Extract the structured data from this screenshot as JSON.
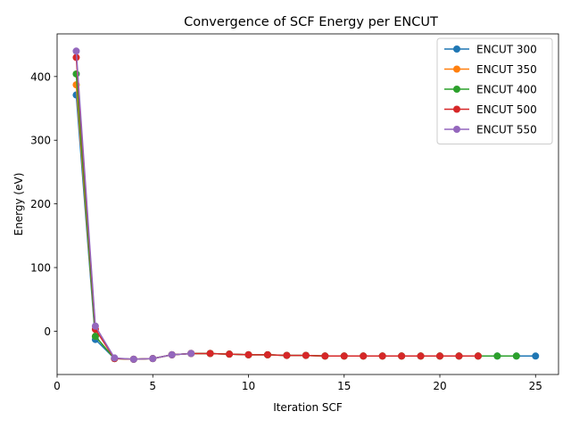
{
  "chart_data": {
    "type": "line",
    "title": "Convergence of SCF Energy per ENCUT",
    "xlabel": "Iteration SCF",
    "ylabel": "Energy (eV)",
    "xlim": [
      0,
      26.2
    ],
    "ylim": [
      -68,
      467
    ],
    "xticks": [
      0,
      5,
      10,
      15,
      20,
      25
    ],
    "yticks": [
      0,
      100,
      200,
      300,
      400
    ],
    "grid": false,
    "legend_position": "top-right",
    "series": [
      {
        "name": "ENCUT 300",
        "color": "#1f77b4",
        "x": [
          1,
          2,
          3,
          4,
          5,
          6,
          7,
          8,
          9,
          10,
          11,
          12,
          13,
          14,
          15,
          16,
          17,
          18,
          19,
          20,
          21,
          22,
          23,
          24,
          25
        ],
        "y": [
          371,
          -13,
          -43,
          -44,
          -43,
          -37,
          -35,
          -35,
          -36,
          -37,
          -37,
          -38,
          -38,
          -39,
          -39,
          -39,
          -39,
          -39,
          -39,
          -39,
          -39,
          -39,
          -39,
          -39,
          -39
        ]
      },
      {
        "name": "ENCUT 350",
        "color": "#ff7f0e",
        "x": [
          1,
          2,
          3,
          4,
          5,
          6,
          7,
          8,
          9,
          10,
          11,
          12,
          13,
          14,
          15,
          16,
          17,
          18,
          19,
          20,
          21,
          22
        ],
        "y": [
          387,
          -8,
          -43,
          -44,
          -43,
          -37,
          -35,
          -35,
          -36,
          -37,
          -37,
          -38,
          -38,
          -39,
          -39,
          -39,
          -39,
          -39,
          -39,
          -39,
          -39,
          -39
        ]
      },
      {
        "name": "ENCUT 400",
        "color": "#2ca02c",
        "x": [
          1,
          2,
          3,
          4,
          5,
          6,
          7,
          8,
          9,
          10,
          11,
          12,
          13,
          14,
          15,
          16,
          17,
          18,
          19,
          20,
          21,
          22,
          23,
          24
        ],
        "y": [
          404,
          -8,
          -43,
          -44,
          -43,
          -37,
          -35,
          -35,
          -36,
          -37,
          -37,
          -38,
          -38,
          -39,
          -39,
          -39,
          -39,
          -39,
          -39,
          -39,
          -39,
          -39,
          -39,
          -39
        ]
      },
      {
        "name": "ENCUT 500",
        "color": "#d62728",
        "x": [
          1,
          2,
          3,
          4,
          5,
          6,
          7,
          8,
          9,
          10,
          11,
          12,
          13,
          14,
          15,
          16,
          17,
          18,
          19,
          20,
          21,
          22
        ],
        "y": [
          430,
          3,
          -43,
          -44,
          -43,
          -37,
          -35,
          -35,
          -36,
          -37,
          -37,
          -38,
          -38,
          -39,
          -39,
          -39,
          -39,
          -39,
          -39,
          -39,
          -39,
          -39
        ]
      },
      {
        "name": "ENCUT 550",
        "color": "#9467bd",
        "x": [
          1,
          2,
          3,
          4,
          5,
          6,
          7
        ],
        "y": [
          440,
          8,
          -42,
          -44,
          -43,
          -37,
          -35
        ]
      }
    ]
  }
}
